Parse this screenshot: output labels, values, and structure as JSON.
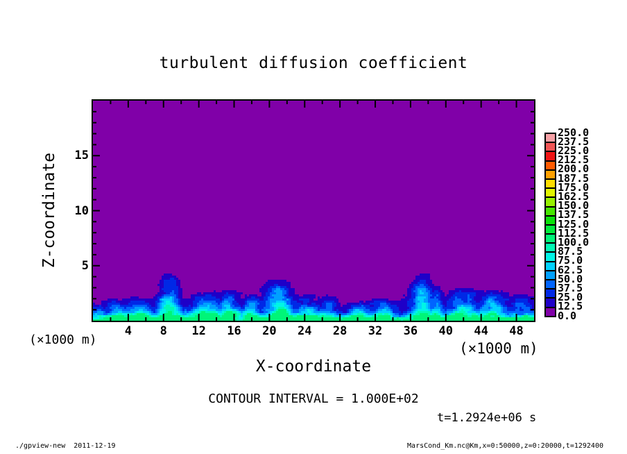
{
  "header": {
    "title": "turbulent diffusion coefficient"
  },
  "annotations": {
    "contour_interval": "CONTOUR INTERVAL = 1.000E+02",
    "time": "t=1.2924e+06 s",
    "unit_left": "(×1000 m)",
    "unit_right": "(×1000 m)"
  },
  "footer": {
    "left": "./gpview-new  2011-12-19",
    "right": "MarsCond_Km.nc@Km,x=0:50000,z=0:20000,t=1292400"
  },
  "chart_data": {
    "type": "heatmap",
    "title": "turbulent diffusion coefficient",
    "xlabel": "X-coordinate",
    "ylabel": "Z-coordinate",
    "axis_units_note": "(×1000 m)",
    "xlim": [
      0,
      50
    ],
    "ylim": [
      0,
      20
    ],
    "x_major_ticks": [
      4,
      8,
      12,
      16,
      20,
      24,
      28,
      32,
      36,
      40,
      44,
      48
    ],
    "x_minor_ticks": [
      2,
      6,
      10,
      14,
      18,
      22,
      26,
      30,
      34,
      38,
      42,
      46
    ],
    "y_major_ticks": [
      5,
      10,
      15
    ],
    "y_minor_ticks": [
      1,
      2,
      3,
      4,
      6,
      7,
      8,
      9,
      11,
      12,
      13,
      14,
      16,
      17,
      18,
      19
    ],
    "grid": false,
    "legend_position": "right-colorbar",
    "contour_interval_value": "1.000E+02",
    "time_value": "t=1.2924e+06 s",
    "colorbar": {
      "levels": [
        0.0,
        12.5,
        25.0,
        37.5,
        50.0,
        62.5,
        75.0,
        87.5,
        100.0,
        112.5,
        125.0,
        137.5,
        150.0,
        162.5,
        175.0,
        187.5,
        200.0,
        212.5,
        225.0,
        237.5,
        250.0
      ],
      "labels": [
        "0.0",
        "12.5",
        "25.0",
        "37.5",
        "50.0",
        "62.5",
        "75.0",
        "87.5",
        "100.0",
        "112.5",
        "125.0",
        "137.5",
        "150.0",
        "162.5",
        "175.0",
        "187.5",
        "200.0",
        "212.5",
        "225.0",
        "237.5",
        "250.0"
      ],
      "colors_low_to_high": [
        "#8000A8",
        "#1E00C8",
        "#0028E6",
        "#0064FF",
        "#00A0FF",
        "#00D2FF",
        "#00F5E6",
        "#00FAB4",
        "#00F578",
        "#00EB3C",
        "#0AE10A",
        "#46E600",
        "#96F000",
        "#E1F500",
        "#FFDC00",
        "#FFA000",
        "#FF5A00",
        "#F01414",
        "#F05555",
        "#F5A0A5"
      ]
    },
    "field": {
      "description": "Turbulent diffusion coefficient Km(x,z): near zero (purple, 0-12.5 band) everywhere above z~5; turbulent convective boundary layer below z~4 made of blue/cyan plumes rising from a bright cyan surface layer; peak values ~75-100.",
      "background_band": "0.0-12.5",
      "max_band": "87.5-100.0",
      "surface_layer": {
        "depth": 0.5,
        "value": 92
      },
      "mixed_layer": {
        "value": 50,
        "decay_height": 1.15
      },
      "plumes": [
        {
          "x": 2.3,
          "w": 1.7,
          "h": 2.0,
          "a": 52
        },
        {
          "x": 5.2,
          "w": 1.4,
          "h": 2.2,
          "a": 54
        },
        {
          "x": 8.6,
          "w": 1.1,
          "h": 4.6,
          "a": 82
        },
        {
          "x": 13.0,
          "w": 1.6,
          "h": 2.9,
          "a": 70
        },
        {
          "x": 15.5,
          "w": 1.2,
          "h": 3.0,
          "a": 68
        },
        {
          "x": 18.0,
          "w": 1.0,
          "h": 2.6,
          "a": 62
        },
        {
          "x": 21.0,
          "w": 1.6,
          "h": 4.0,
          "a": 78
        },
        {
          "x": 24.0,
          "w": 1.6,
          "h": 2.7,
          "a": 66
        },
        {
          "x": 26.8,
          "w": 1.1,
          "h": 2.4,
          "a": 58
        },
        {
          "x": 30.0,
          "w": 1.4,
          "h": 1.7,
          "a": 46
        },
        {
          "x": 33.0,
          "w": 1.3,
          "h": 2.1,
          "a": 55
        },
        {
          "x": 37.3,
          "w": 1.2,
          "h": 4.6,
          "a": 82
        },
        {
          "x": 39.0,
          "w": 0.8,
          "h": 3.4,
          "a": 60
        },
        {
          "x": 42.0,
          "w": 1.8,
          "h": 3.2,
          "a": 74
        },
        {
          "x": 45.5,
          "w": 1.7,
          "h": 2.9,
          "a": 72
        },
        {
          "x": 48.5,
          "w": 1.5,
          "h": 2.6,
          "a": 66
        }
      ]
    }
  }
}
